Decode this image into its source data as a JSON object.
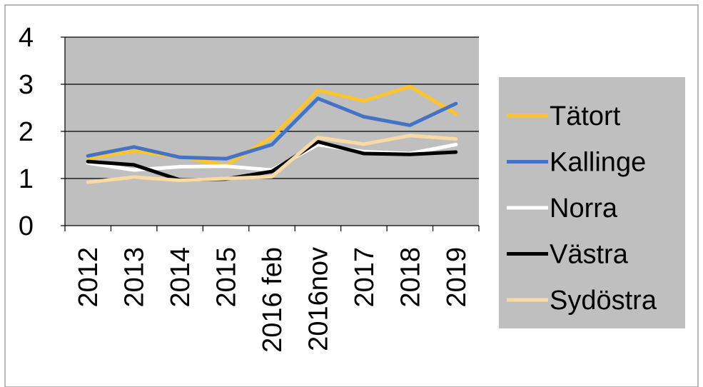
{
  "chart_data": {
    "type": "line",
    "categories": [
      "2012",
      "2013",
      "2014",
      "2015",
      "2016 feb",
      "2016nov",
      "2017",
      "2018",
      "2019"
    ],
    "ylim": [
      0,
      4
    ],
    "yticks": [
      "0",
      "1",
      "2",
      "3",
      "4"
    ],
    "grid": true,
    "legend_position": "right",
    "plot_background": "#bfbfbf",
    "legend_background": "#bfbfbf",
    "series": [
      {
        "name": "Tätort",
        "color": "#fdc42b",
        "values": [
          1.43,
          1.58,
          1.46,
          1.28,
          1.88,
          2.87,
          2.65,
          2.95,
          2.37
        ]
      },
      {
        "name": "Kallinge",
        "color": "#4472c4",
        "values": [
          1.48,
          1.67,
          1.45,
          1.42,
          1.72,
          2.7,
          2.31,
          2.13,
          2.59
        ]
      },
      {
        "name": "Norra",
        "color": "#ffffff",
        "values": [
          1.33,
          1.18,
          1.25,
          1.26,
          1.18,
          1.72,
          1.57,
          1.53,
          1.72
        ]
      },
      {
        "name": "Västra",
        "color": "#000000",
        "values": [
          1.36,
          1.29,
          0.97,
          0.99,
          1.15,
          1.78,
          1.53,
          1.51,
          1.56
        ]
      },
      {
        "name": "Sydöstra",
        "color": "#f9d9a4",
        "values": [
          0.92,
          1.03,
          0.96,
          1.0,
          1.04,
          1.87,
          1.73,
          1.91,
          1.84
        ]
      }
    ]
  }
}
